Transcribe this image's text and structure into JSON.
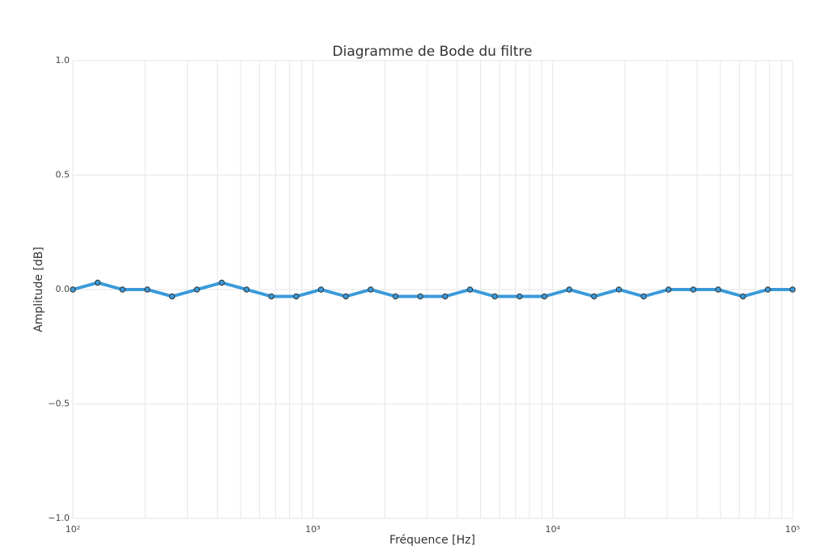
{
  "chart_data": {
    "type": "line",
    "title": "Diagramme de Bode du filtre",
    "xlabel": "Fréquence [Hz]",
    "ylabel": "Amplitude [dB]",
    "x": [
      100,
      126.9,
      161.0,
      204.3,
      259.3,
      329.0,
      417.5,
      529.8,
      672.3,
      853.2,
      1082.6,
      1373.8,
      1743.3,
      2212.2,
      2807.2,
      3562.2,
      4520.4,
      5736.2,
      7279.0,
      9236.7,
      11721,
      14874,
      18874,
      23950,
      30392,
      38566,
      48939,
      62102,
      78805,
      100000
    ],
    "series": [
      {
        "color": "#3a9ad9",
        "values": [
          0,
          0.03,
          0,
          0,
          -0.03,
          0,
          0.03,
          0,
          -0.03,
          -0.03,
          0,
          -0.03,
          0,
          -0.03,
          -0.03,
          -0.03,
          0,
          -0.03,
          -0.03,
          -0.03,
          0,
          -0.03,
          0,
          -0.03,
          0,
          0,
          0,
          -0.03,
          0,
          0
        ]
      }
    ],
    "xlog": true,
    "xlim": [
      100,
      100000
    ],
    "xticks": [
      {
        "value": 100,
        "label": "10²"
      },
      {
        "value": 1000,
        "label": "10³"
      },
      {
        "value": 10000,
        "label": "10⁴"
      },
      {
        "value": 100000,
        "label": "10⁵"
      }
    ],
    "xminorticks": [
      200,
      300,
      400,
      500,
      600,
      700,
      800,
      900,
      2000,
      3000,
      4000,
      5000,
      6000,
      7000,
      8000,
      9000,
      20000,
      30000,
      40000,
      50000,
      60000,
      70000,
      80000,
      90000
    ],
    "ylim": [
      -1,
      1
    ],
    "yticks": [
      {
        "value": -1,
        "label": "−1.0"
      },
      {
        "value": -0.5,
        "label": "−0.5"
      },
      {
        "value": 0,
        "label": "0.0"
      },
      0.5,
      {
        "value": 1,
        "label": "1.0"
      }
    ],
    "grid": true
  }
}
